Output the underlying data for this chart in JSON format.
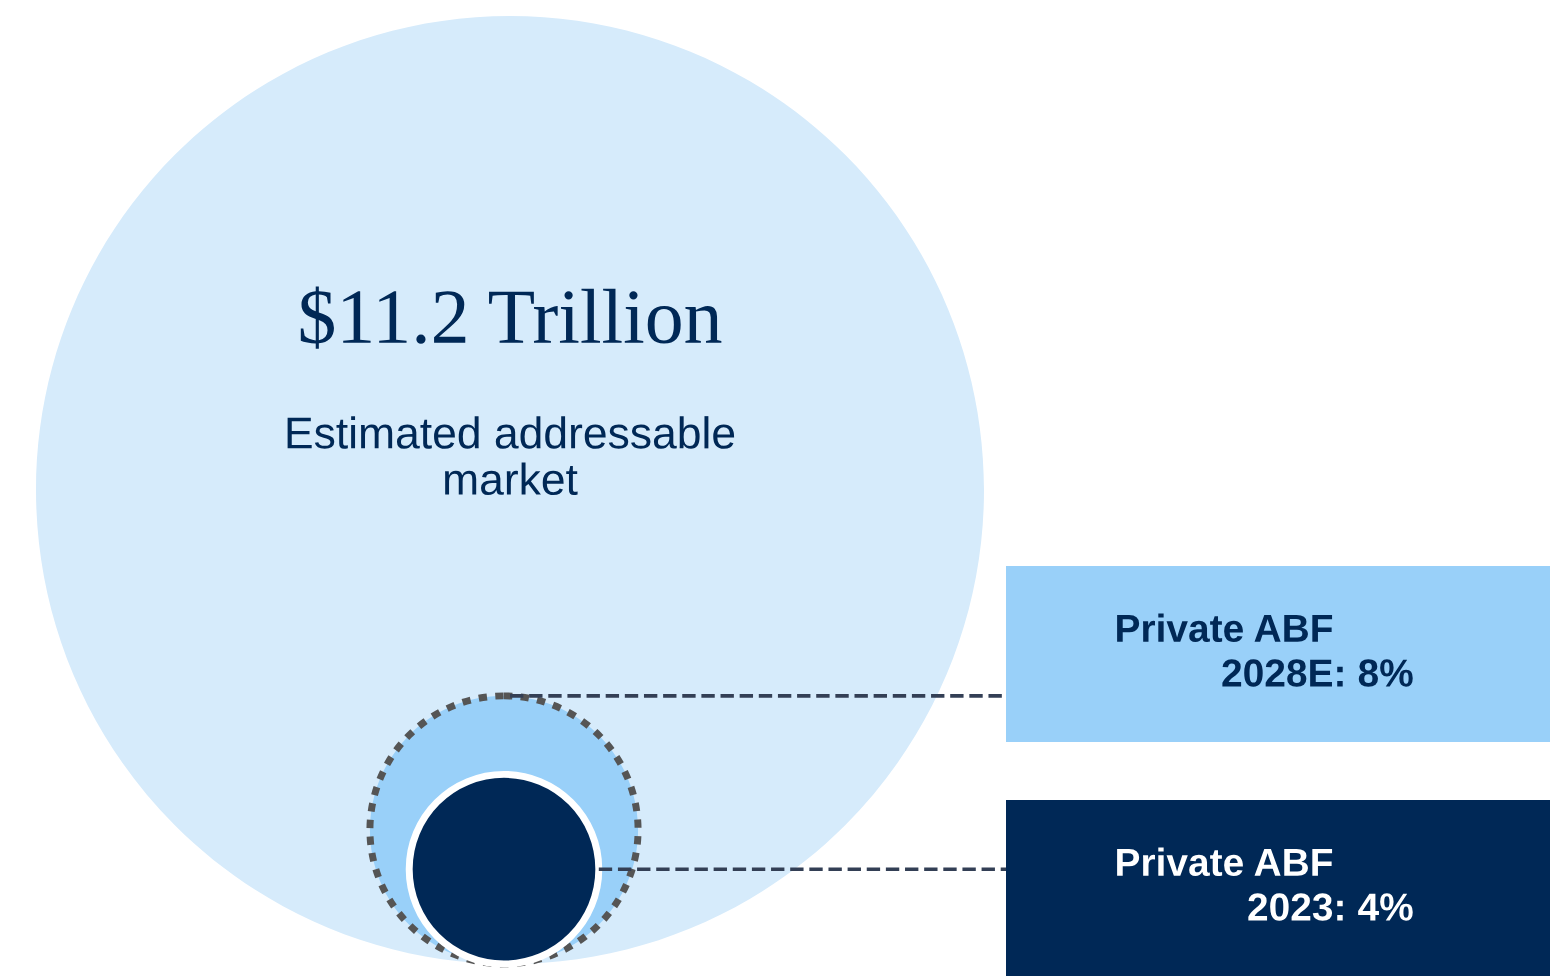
{
  "chart_data": {
    "type": "other",
    "title": "$11.2 Trillion",
    "subtitle": "Estimated addressable\nmarket",
    "color": "#d6ebfb",
    "categories": [
      "Private ABF\n2028E",
      "Private ABF\n2023"
    ],
    "values": [
      8,
      4
    ],
    "value_labels": [
      "8%",
      "4%"
    ],
    "annotations": [
      ":",
      ":"
    ],
    "colors": [
      "#99d0f9",
      "#002856"
    ]
  }
}
